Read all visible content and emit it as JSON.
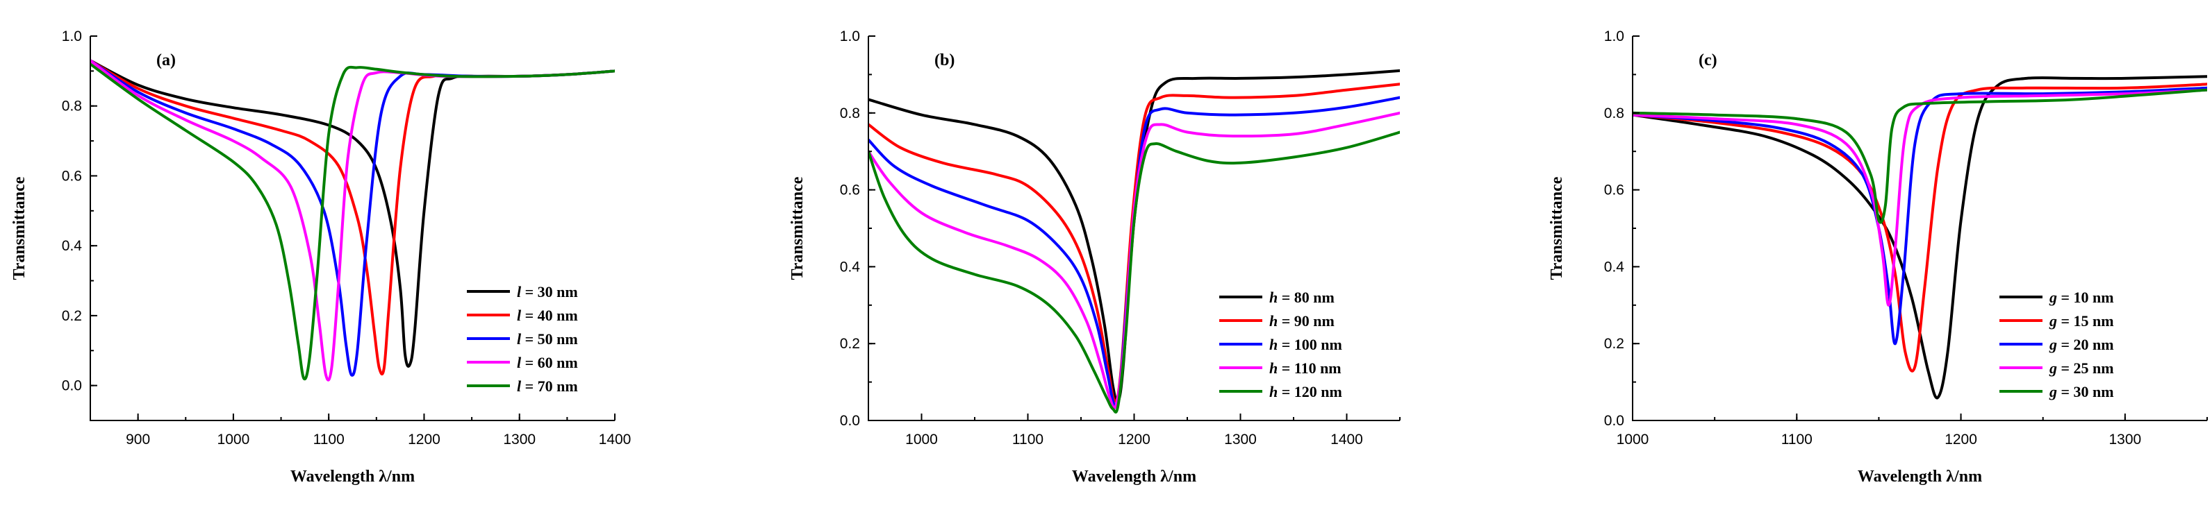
{
  "chart_data": [
    {
      "type": "line",
      "panel_label": "(a)",
      "xlabel": "Wavelength λ/nm",
      "ylabel": "Transmittance",
      "xlim": [
        850,
        1400
      ],
      "ylim": [
        -0.1,
        1.0
      ],
      "xticks": [
        900,
        1000,
        1100,
        1200,
        1300,
        1400
      ],
      "xtick_labels": [
        "900",
        "1000",
        "1100",
        "1200",
        "1300",
        "1400"
      ],
      "yticks": [
        0.0,
        0.2,
        0.4,
        0.6,
        0.8,
        1.0
      ],
      "ytick_labels": [
        "0.0",
        "0.2",
        "0.4",
        "0.6",
        "0.8",
        "1.0"
      ],
      "legend_position": "lower-right",
      "series": [
        {
          "name": "l = 30 nm",
          "legend_prefix": "l",
          "legend_suffix": " = 30 nm",
          "color": "#000000",
          "x": [
            850,
            900,
            950,
            1000,
            1050,
            1100,
            1130,
            1150,
            1165,
            1175,
            1180,
            1185,
            1190,
            1200,
            1215,
            1230,
            1260,
            1300,
            1350,
            1400
          ],
          "y": [
            0.93,
            0.86,
            0.82,
            0.795,
            0.775,
            0.745,
            0.7,
            0.62,
            0.47,
            0.28,
            0.09,
            0.06,
            0.15,
            0.5,
            0.83,
            0.88,
            0.885,
            0.885,
            0.89,
            0.9
          ]
        },
        {
          "name": "l = 40 nm",
          "legend_prefix": "l",
          "legend_suffix": " = 40 nm",
          "color": "#ff0000",
          "x": [
            850,
            900,
            950,
            1000,
            1050,
            1080,
            1110,
            1130,
            1140,
            1148,
            1153,
            1158,
            1163,
            1175,
            1190,
            1210,
            1240,
            1300,
            1350,
            1400
          ],
          "y": [
            0.93,
            0.85,
            0.8,
            0.765,
            0.73,
            0.7,
            0.63,
            0.48,
            0.33,
            0.15,
            0.05,
            0.05,
            0.22,
            0.62,
            0.85,
            0.885,
            0.885,
            0.885,
            0.89,
            0.9
          ]
        },
        {
          "name": "l = 50 nm",
          "legend_prefix": "l",
          "legend_suffix": " = 50 nm",
          "color": "#0000ff",
          "x": [
            850,
            900,
            950,
            1000,
            1040,
            1070,
            1095,
            1110,
            1118,
            1124,
            1130,
            1140,
            1155,
            1175,
            1200,
            1250,
            1300,
            1350,
            1400
          ],
          "y": [
            0.93,
            0.84,
            0.78,
            0.735,
            0.69,
            0.63,
            0.5,
            0.3,
            0.12,
            0.03,
            0.1,
            0.42,
            0.78,
            0.885,
            0.89,
            0.885,
            0.885,
            0.89,
            0.9
          ]
        },
        {
          "name": "l = 60 nm",
          "legend_prefix": "l",
          "legend_suffix": " = 60 nm",
          "color": "#ff00ff",
          "x": [
            850,
            900,
            950,
            1000,
            1030,
            1060,
            1080,
            1090,
            1097,
            1103,
            1110,
            1120,
            1135,
            1150,
            1175,
            1220,
            1300,
            1350,
            1400
          ],
          "y": [
            0.93,
            0.83,
            0.76,
            0.7,
            0.65,
            0.57,
            0.38,
            0.18,
            0.03,
            0.05,
            0.28,
            0.65,
            0.86,
            0.895,
            0.895,
            0.885,
            0.885,
            0.89,
            0.9
          ]
        },
        {
          "name": "l = 70 nm",
          "legend_prefix": "l",
          "legend_suffix": " = 70 nm",
          "color": "#008000",
          "x": [
            850,
            900,
            950,
            1000,
            1025,
            1045,
            1058,
            1068,
            1074,
            1080,
            1088,
            1100,
            1115,
            1130,
            1150,
            1180,
            1230,
            1300,
            1350,
            1400
          ],
          "y": [
            0.92,
            0.82,
            0.73,
            0.64,
            0.57,
            0.46,
            0.3,
            0.12,
            0.02,
            0.08,
            0.32,
            0.72,
            0.89,
            0.91,
            0.905,
            0.895,
            0.885,
            0.885,
            0.89,
            0.9
          ]
        }
      ]
    },
    {
      "type": "line",
      "panel_label": "(b)",
      "xlabel": "Wavelength λ/nm",
      "ylabel": "Transmittance",
      "xlim": [
        950,
        1450
      ],
      "ylim": [
        0.0,
        1.0
      ],
      "xticks": [
        1000,
        1100,
        1200,
        1300,
        1400
      ],
      "xtick_labels": [
        "1000",
        "1100",
        "1200",
        "1300",
        "1400"
      ],
      "yticks": [
        0.0,
        0.2,
        0.4,
        0.6,
        0.8,
        1.0
      ],
      "ytick_labels": [
        "0.0",
        "0.2",
        "0.4",
        "0.6",
        "0.8",
        "1.0"
      ],
      "legend_position": "lower-right",
      "series": [
        {
          "name": "h = 80 nm",
          "legend_prefix": "h",
          "legend_suffix": " = 80 nm",
          "color": "#000000",
          "x": [
            950,
            1000,
            1050,
            1090,
            1120,
            1145,
            1160,
            1172,
            1180,
            1185,
            1190,
            1200,
            1215,
            1230,
            1260,
            1300,
            1350,
            1400,
            1450
          ],
          "y": [
            0.835,
            0.795,
            0.77,
            0.74,
            0.68,
            0.56,
            0.42,
            0.25,
            0.09,
            0.05,
            0.15,
            0.52,
            0.8,
            0.88,
            0.89,
            0.89,
            0.893,
            0.9,
            0.91
          ]
        },
        {
          "name": "h = 90 nm",
          "legend_prefix": "h",
          "legend_suffix": " = 90 nm",
          "color": "#ff0000",
          "x": [
            950,
            980,
            1020,
            1070,
            1100,
            1130,
            1150,
            1165,
            1175,
            1182,
            1188,
            1198,
            1210,
            1225,
            1250,
            1290,
            1350,
            1400,
            1450
          ],
          "y": [
            0.77,
            0.71,
            0.67,
            0.64,
            0.61,
            0.53,
            0.43,
            0.29,
            0.14,
            0.05,
            0.14,
            0.52,
            0.79,
            0.84,
            0.845,
            0.84,
            0.845,
            0.86,
            0.875
          ]
        },
        {
          "name": "h = 100 nm",
          "legend_prefix": "h",
          "legend_suffix": " = 100 nm",
          "color": "#0000ff",
          "x": [
            950,
            975,
            1010,
            1060,
            1100,
            1130,
            1150,
            1165,
            1175,
            1182,
            1188,
            1198,
            1210,
            1225,
            1250,
            1290,
            1350,
            1400,
            1450
          ],
          "y": [
            0.73,
            0.66,
            0.61,
            0.56,
            0.52,
            0.45,
            0.37,
            0.25,
            0.12,
            0.04,
            0.13,
            0.48,
            0.76,
            0.81,
            0.8,
            0.795,
            0.8,
            0.815,
            0.84
          ]
        },
        {
          "name": "h = 110 nm",
          "legend_prefix": "h",
          "legend_suffix": " = 110 nm",
          "color": "#ff00ff",
          "x": [
            950,
            970,
            1000,
            1040,
            1080,
            1110,
            1135,
            1155,
            1168,
            1177,
            1183,
            1190,
            1200,
            1212,
            1225,
            1250,
            1290,
            1350,
            1400,
            1450
          ],
          "y": [
            0.7,
            0.62,
            0.54,
            0.49,
            0.455,
            0.42,
            0.36,
            0.26,
            0.15,
            0.06,
            0.04,
            0.18,
            0.55,
            0.74,
            0.77,
            0.75,
            0.74,
            0.745,
            0.77,
            0.8
          ]
        },
        {
          "name": "h = 120 nm",
          "legend_prefix": "h",
          "legend_suffix": " = 120 nm",
          "color": "#008000",
          "x": [
            950,
            965,
            985,
            1010,
            1050,
            1090,
            1120,
            1145,
            1162,
            1174,
            1180,
            1185,
            1192,
            1200,
            1210,
            1220,
            1240,
            1270,
            1300,
            1350,
            1400,
            1450
          ],
          "y": [
            0.7,
            0.58,
            0.48,
            0.42,
            0.38,
            0.35,
            0.3,
            0.22,
            0.13,
            0.06,
            0.03,
            0.04,
            0.22,
            0.52,
            0.69,
            0.72,
            0.7,
            0.675,
            0.67,
            0.685,
            0.71,
            0.75
          ]
        }
      ]
    },
    {
      "type": "line",
      "panel_label": "(c)",
      "xlabel": "Wavelength λ/nm",
      "ylabel": "Transmittance",
      "xlim": [
        1000,
        1350
      ],
      "ylim": [
        0.0,
        1.0
      ],
      "xticks": [
        1000,
        1100,
        1200,
        1300
      ],
      "xtick_labels": [
        "1000",
        "1100",
        "1200",
        "1300"
      ],
      "yticks": [
        0.0,
        0.2,
        0.4,
        0.6,
        0.8,
        1.0
      ],
      "ytick_labels": [
        "0.0",
        "0.2",
        "0.4",
        "0.6",
        "0.8",
        "1.0"
      ],
      "legend_position": "lower-right",
      "series": [
        {
          "name": "g = 10 nm",
          "legend_prefix": "g",
          "legend_suffix": " = 10 nm",
          "color": "#000000",
          "x": [
            1000,
            1040,
            1080,
            1110,
            1130,
            1145,
            1158,
            1170,
            1180,
            1186,
            1192,
            1200,
            1210,
            1222,
            1240,
            1270,
            1300,
            1350
          ],
          "y": [
            0.795,
            0.77,
            0.74,
            0.69,
            0.63,
            0.56,
            0.47,
            0.32,
            0.13,
            0.06,
            0.18,
            0.52,
            0.78,
            0.87,
            0.89,
            0.89,
            0.89,
            0.895
          ]
        },
        {
          "name": "g = 15 nm",
          "legend_prefix": "g",
          "legend_suffix": " = 15 nm",
          "color": "#ff0000",
          "x": [
            1000,
            1050,
            1090,
            1120,
            1140,
            1152,
            1160,
            1166,
            1172,
            1178,
            1186,
            1195,
            1210,
            1240,
            1300,
            1350
          ],
          "y": [
            0.795,
            0.775,
            0.75,
            0.71,
            0.64,
            0.53,
            0.38,
            0.18,
            0.14,
            0.35,
            0.66,
            0.82,
            0.86,
            0.865,
            0.865,
            0.875
          ]
        },
        {
          "name": "g = 20 nm",
          "legend_prefix": "g",
          "legend_suffix": " = 20 nm",
          "color": "#0000ff",
          "x": [
            1000,
            1050,
            1090,
            1120,
            1140,
            1150,
            1156,
            1160,
            1165,
            1172,
            1182,
            1200,
            1250,
            1300,
            1350
          ],
          "y": [
            0.795,
            0.78,
            0.76,
            0.72,
            0.64,
            0.5,
            0.34,
            0.2,
            0.38,
            0.72,
            0.83,
            0.85,
            0.85,
            0.855,
            0.865
          ]
        },
        {
          "name": "g = 25 nm",
          "legend_prefix": "g",
          "legend_suffix": " = 25 nm",
          "color": "#ff00ff",
          "x": [
            1000,
            1050,
            1100,
            1130,
            1145,
            1152,
            1156,
            1160,
            1166,
            1175,
            1200,
            1250,
            1300,
            1350
          ],
          "y": [
            0.795,
            0.785,
            0.77,
            0.72,
            0.6,
            0.44,
            0.3,
            0.45,
            0.74,
            0.82,
            0.84,
            0.845,
            0.85,
            0.86
          ]
        },
        {
          "name": "g = 30 nm",
          "legend_prefix": "g",
          "legend_suffix": " = 30 nm",
          "color": "#008000",
          "x": [
            1000,
            1050,
            1100,
            1130,
            1145,
            1150,
            1154,
            1158,
            1165,
            1180,
            1220,
            1270,
            1350
          ],
          "y": [
            0.8,
            0.795,
            0.785,
            0.75,
            0.64,
            0.52,
            0.56,
            0.76,
            0.815,
            0.825,
            0.83,
            0.835,
            0.86
          ]
        }
      ]
    }
  ]
}
